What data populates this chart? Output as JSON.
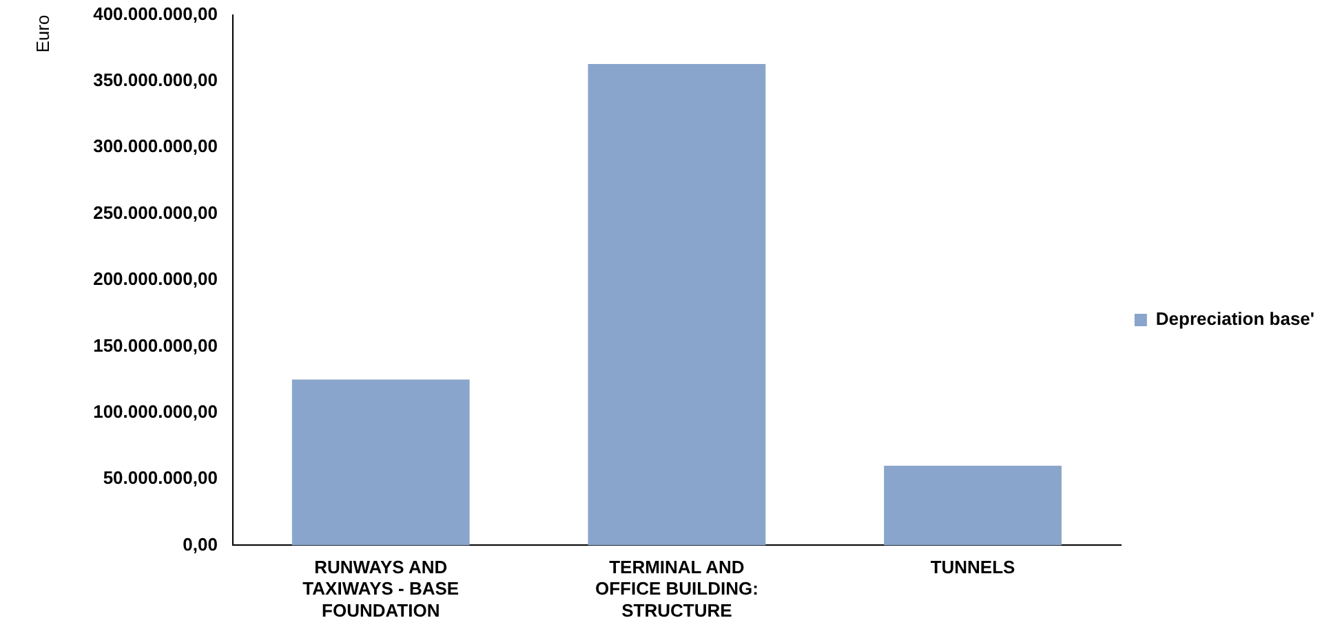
{
  "chart_data": {
    "type": "bar",
    "ylabel": "Euro",
    "categories": [
      "RUNWAYS AND TAXIWAYS - BASE FOUNDATION",
      "TERMINAL AND OFFICE BUILDING: STRUCTURE",
      "TUNNELS"
    ],
    "series": [
      {
        "name": "Depreciation base'",
        "color": "#8aa5cb",
        "values": [
          125000000,
          363000000,
          60000000
        ]
      }
    ],
    "ylim": [
      0,
      400000000
    ],
    "yticks": [
      {
        "value": 0,
        "label": "0,00"
      },
      {
        "value": 50000000,
        "label": "50.000.000,00"
      },
      {
        "value": 100000000,
        "label": "100.000.000,00"
      },
      {
        "value": 150000000,
        "label": "150.000.000,00"
      },
      {
        "value": 200000000,
        "label": "200.000.000,00"
      },
      {
        "value": 250000000,
        "label": "250.000.000,00"
      },
      {
        "value": 300000000,
        "label": "300.000.000,00"
      },
      {
        "value": 350000000,
        "label": "350.000.000,00"
      },
      {
        "value": 400000000,
        "label": "400.000.000,00"
      }
    ],
    "grid": false,
    "legend": "right"
  }
}
